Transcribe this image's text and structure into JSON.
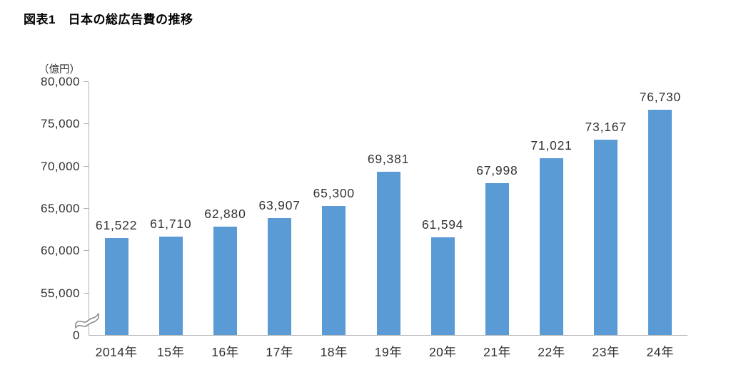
{
  "title": "図表1　日本の総広告費の推移",
  "chart_data": {
    "type": "bar",
    "title": "図表1　日本の総広告費の推移",
    "unit_label": "（億円）",
    "xlabel": "",
    "ylabel": "（億円）",
    "categories": [
      "2014年",
      "15年",
      "16年",
      "17年",
      "18年",
      "19年",
      "20年",
      "21年",
      "22年",
      "23年",
      "24年"
    ],
    "values": [
      61522,
      61710,
      62880,
      63907,
      65300,
      69381,
      61594,
      67998,
      71021,
      73167,
      76730
    ],
    "value_labels": [
      "61,522",
      "61,710",
      "62,880",
      "63,907",
      "65,300",
      "69,381",
      "61,594",
      "67,998",
      "71,021",
      "73,167",
      "76,730"
    ],
    "yticks": [
      80000,
      75000,
      70000,
      65000,
      60000,
      55000,
      0
    ],
    "ytick_labels": [
      "80,000",
      "75,000",
      "70,000",
      "65,000",
      "60,000",
      "55,000",
      "0"
    ],
    "ylim": [
      0,
      80000
    ],
    "axis_break": true,
    "axis_break_between": [
      0,
      55000
    ],
    "grid": false,
    "legend": false,
    "bar_color": "#5B9BD5",
    "axis_color": "#B3B3B3",
    "label_color": "#333333"
  }
}
